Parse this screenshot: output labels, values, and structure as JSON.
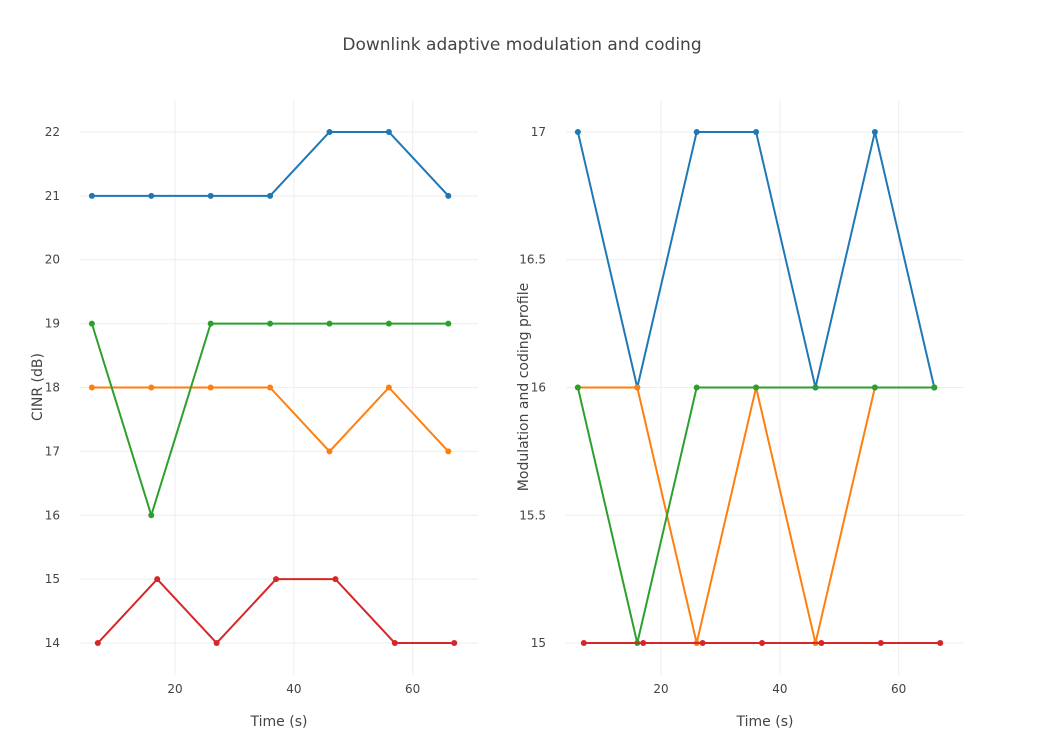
{
  "chart_data": {
    "type": "line",
    "title": "Downlink adaptive modulation and coding",
    "colors": [
      "#1f77b4",
      "#ff7f0e",
      "#2ca02c",
      "#d62728"
    ],
    "grid": true,
    "legend": "none",
    "subplots": [
      {
        "name": "left",
        "xlabel": "Time (s)",
        "ylabel": "CINR (dB)",
        "xlim": [
          4,
          71
        ],
        "ylim": [
          13.5,
          22.5
        ],
        "xticks": [
          20,
          40,
          60
        ],
        "yticks": [
          14,
          15,
          16,
          17,
          18,
          19,
          20,
          21,
          22
        ],
        "ytick_labels": [
          "14",
          "15",
          "16",
          "17",
          "18",
          "19",
          "20",
          "21",
          "22"
        ],
        "series": [
          {
            "x": [
              6,
              16,
              26,
              36,
              46,
              56,
              66
            ],
            "y": [
              21,
              21,
              21,
              21,
              22,
              22,
              21
            ]
          },
          {
            "x": [
              6,
              16,
              26,
              36,
              46,
              56,
              66
            ],
            "y": [
              18,
              18,
              18,
              18,
              17,
              18,
              17
            ]
          },
          {
            "x": [
              6,
              16,
              26,
              36,
              46,
              56,
              66
            ],
            "y": [
              19,
              16,
              19,
              19,
              19,
              19,
              19
            ]
          },
          {
            "x": [
              7,
              17,
              27,
              37,
              47,
              57,
              67
            ],
            "y": [
              14,
              15,
              14,
              15,
              15,
              14,
              14
            ]
          }
        ]
      },
      {
        "name": "right",
        "xlabel": "Time (s)",
        "ylabel": "Modulation and coding profile",
        "xlim": [
          4,
          71
        ],
        "ylim": [
          14.875,
          17.125
        ],
        "xticks": [
          20,
          40,
          60
        ],
        "yticks": [
          15,
          15.5,
          16,
          16.5,
          17
        ],
        "ytick_labels": [
          "15",
          "15.5",
          "16",
          "16.5",
          "17"
        ],
        "series": [
          {
            "x": [
              6,
              16,
              26,
              36,
              46,
              56,
              66
            ],
            "y": [
              17,
              16,
              17,
              17,
              16,
              17,
              16
            ]
          },
          {
            "x": [
              6,
              16,
              26,
              36,
              46,
              56,
              66
            ],
            "y": [
              16,
              16,
              15,
              16,
              15,
              16,
              16
            ]
          },
          {
            "x": [
              6,
              16,
              26,
              36,
              46,
              56,
              66
            ],
            "y": [
              16,
              15,
              16,
              16,
              16,
              16,
              16
            ]
          },
          {
            "x": [
              7,
              17,
              27,
              37,
              47,
              57,
              67
            ],
            "y": [
              15,
              15,
              15,
              15,
              15,
              15,
              15
            ]
          }
        ]
      }
    ]
  }
}
